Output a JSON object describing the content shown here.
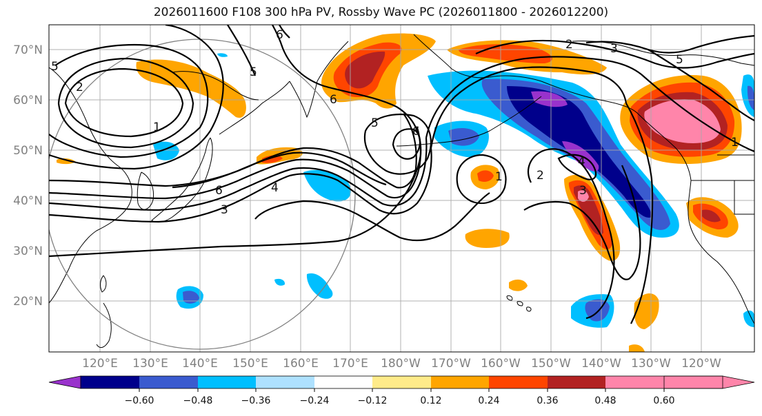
{
  "title": "2026011600 F108 300 hPa PV, Rossby Wave PC (2026011800 - 2026012200)",
  "lat_labels": [
    "70°N",
    "60°N",
    "50°N",
    "40°N",
    "30°N",
    "20°N"
  ],
  "lon_labels": [
    "120°E",
    "130°E",
    "140°E",
    "150°E",
    "160°E",
    "170°E",
    "180°W",
    "170°W",
    "160°W",
    "150°W",
    "140°W",
    "130°W",
    "120°W"
  ],
  "contour_labels": [
    "1",
    "2",
    "3",
    "4",
    "5",
    "6"
  ],
  "colorbar": {
    "tick_labels": [
      "−0.60",
      "−0.48",
      "−0.36",
      "−0.24",
      "−0.12",
      "0.12",
      "0.24",
      "0.36",
      "0.48",
      "0.60"
    ],
    "colors": [
      "#9932CC",
      "#00008B",
      "#3A5BCF",
      "#00BFFF",
      "#AEE1FF",
      "#FFFFFF",
      "#FFEB8A",
      "#FFA500",
      "#FF4500",
      "#B22222",
      "#FF85AA"
    ]
  },
  "colors": {
    "contour": "#000000",
    "grid": "#A9A9A9",
    "coast": "#000000",
    "circle": "#808080"
  }
}
